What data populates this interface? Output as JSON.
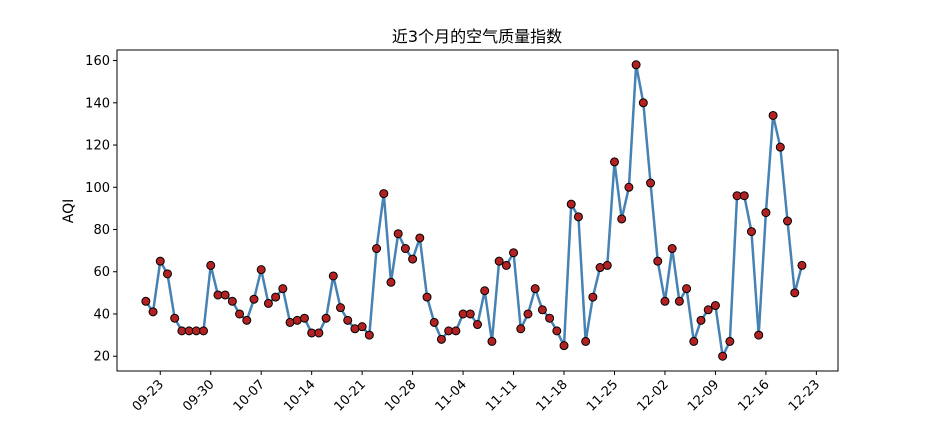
{
  "chart_data": {
    "type": "line",
    "title": "近3个月的空气质量指数",
    "ylabel": "AQI",
    "x": [
      "09-21",
      "09-22",
      "09-23",
      "09-24",
      "09-25",
      "09-26",
      "09-27",
      "09-28",
      "09-29",
      "09-30",
      "10-01",
      "10-02",
      "10-03",
      "10-04",
      "10-05",
      "10-06",
      "10-07",
      "10-08",
      "10-09",
      "10-10",
      "10-11",
      "10-12",
      "10-13",
      "10-14",
      "10-15",
      "10-16",
      "10-17",
      "10-18",
      "10-19",
      "10-20",
      "10-21",
      "10-22",
      "10-23",
      "10-24",
      "10-25",
      "10-26",
      "10-27",
      "10-28",
      "10-29",
      "10-30",
      "10-31",
      "11-01",
      "11-02",
      "11-03",
      "11-04",
      "11-05",
      "11-06",
      "11-07",
      "11-08",
      "11-09",
      "11-10",
      "11-11",
      "11-12",
      "11-13",
      "11-14",
      "11-15",
      "11-16",
      "11-17",
      "11-18",
      "11-19",
      "11-20",
      "11-21",
      "11-22",
      "11-23",
      "11-24",
      "11-25",
      "11-26",
      "11-27",
      "11-28",
      "11-29",
      "11-30",
      "12-01",
      "12-02",
      "12-03",
      "12-04",
      "12-05",
      "12-06",
      "12-07",
      "12-08",
      "12-09",
      "12-10",
      "12-11",
      "12-12",
      "12-13",
      "12-14",
      "12-15",
      "12-16",
      "12-17",
      "12-18",
      "12-19",
      "12-20",
      "12-21"
    ],
    "series": [
      {
        "name": "AQI",
        "color": "#4682b4",
        "marker_color": "#b22222",
        "values": [
          46,
          41,
          65,
          59,
          38,
          32,
          32,
          32,
          32,
          63,
          49,
          49,
          46,
          40,
          37,
          47,
          61,
          45,
          48,
          52,
          36,
          37,
          38,
          31,
          31,
          38,
          58,
          43,
          37,
          33,
          34,
          30,
          71,
          97,
          55,
          78,
          71,
          66,
          76,
          48,
          36,
          28,
          32,
          32,
          40,
          40,
          35,
          51,
          27,
          65,
          63,
          69,
          33,
          40,
          52,
          42,
          38,
          32,
          25,
          92,
          86,
          27,
          48,
          62,
          63,
          112,
          85,
          100,
          158,
          140,
          102,
          65,
          46,
          71,
          46,
          52,
          27,
          37,
          42,
          44,
          20,
          27,
          96,
          96,
          79,
          30,
          88,
          134,
          119,
          84,
          50,
          63
        ]
      }
    ],
    "xlim": [
      "09-17",
      "12-26"
    ],
    "xticks": [
      "09-23",
      "09-30",
      "10-07",
      "10-14",
      "10-21",
      "10-28",
      "11-04",
      "11-11",
      "11-18",
      "11-25",
      "12-02",
      "12-09",
      "12-16",
      "12-23"
    ],
    "ylim": [
      13,
      165
    ],
    "yticks": [
      20,
      40,
      60,
      80,
      100,
      120,
      140,
      160
    ]
  }
}
